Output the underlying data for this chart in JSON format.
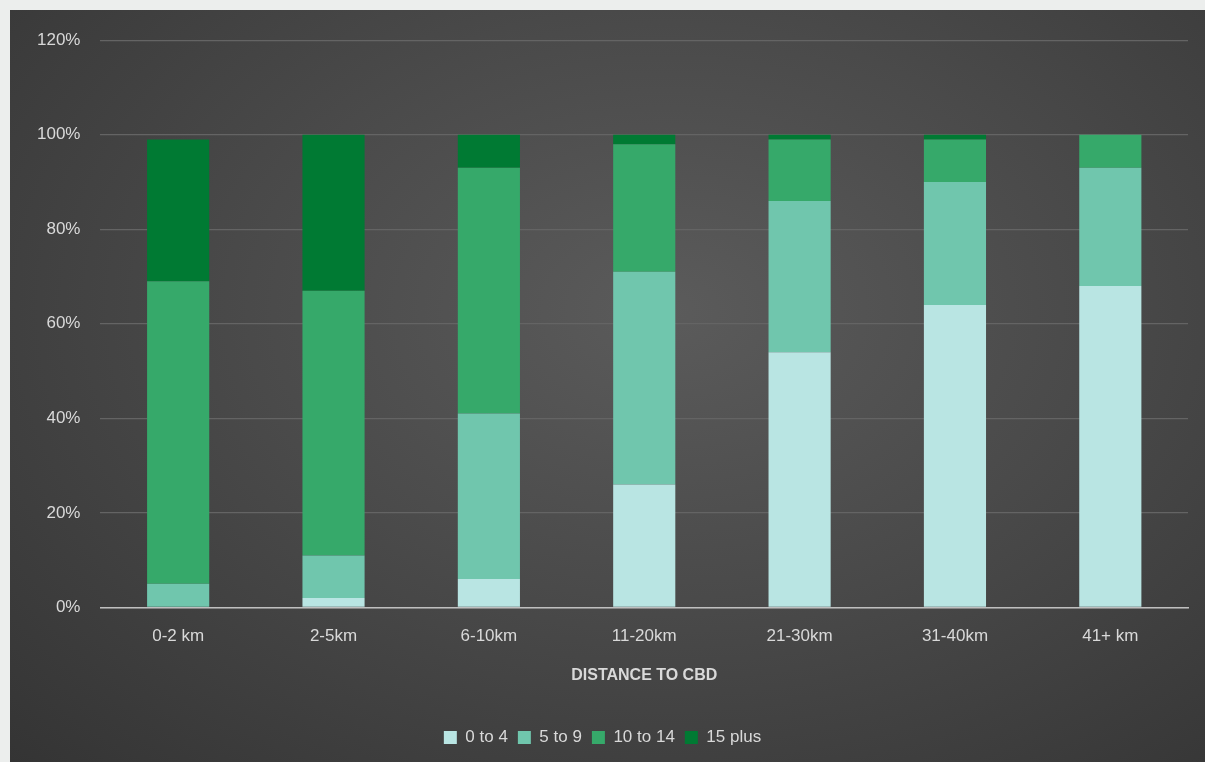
{
  "chart_data": {
    "type": "bar",
    "stacked": true,
    "xlabel": "DISTANCE TO CBD",
    "categories": [
      "0-2 km",
      "2-5km",
      "6-10km",
      "11-20km",
      "21-30km",
      "31-40km",
      "41+ km"
    ],
    "series": [
      {
        "name": "0 to 4",
        "color": "#b9e5e3",
        "values": [
          0,
          2,
          6,
          26,
          54,
          64,
          68
        ]
      },
      {
        "name": "5 to 9",
        "color": "#70c6ad",
        "values": [
          5,
          9,
          35,
          45,
          32,
          26,
          25
        ]
      },
      {
        "name": "10 to 14",
        "color": "#36a96a",
        "values": [
          64,
          56,
          52,
          27,
          13,
          9,
          7
        ]
      },
      {
        "name": "15 plus",
        "color": "#007a33",
        "values": [
          30,
          33,
          7,
          2,
          1,
          1,
          0
        ]
      }
    ],
    "ylim": [
      0,
      120
    ],
    "yticks": [
      {
        "value": 0,
        "label": "0%"
      },
      {
        "value": 20,
        "label": "20%"
      },
      {
        "value": 40,
        "label": "40%"
      },
      {
        "value": 60,
        "label": "60%"
      },
      {
        "value": 80,
        "label": "80%"
      },
      {
        "value": 100,
        "label": "100%"
      },
      {
        "value": 120,
        "label": "120%"
      }
    ],
    "grid": "y",
    "legend": "bottom"
  }
}
